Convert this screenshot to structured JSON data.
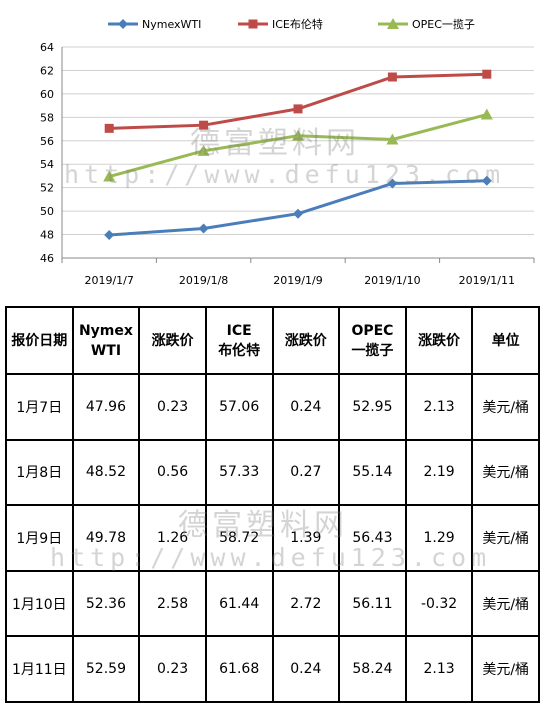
{
  "chart_data": {
    "type": "line",
    "categories": [
      "2019/1/7",
      "2019/1/8",
      "2019/1/9",
      "2019/1/10",
      "2019/1/11"
    ],
    "ylim": [
      46,
      64
    ],
    "yticks": [
      "46",
      "48",
      "50",
      "52",
      "54",
      "56",
      "58",
      "60",
      "62",
      "64"
    ],
    "grid": true,
    "legend": "top",
    "series": [
      {
        "name": "NymexWTI",
        "color": "#4a7ebb",
        "marker": "diamond",
        "values": [
          47.96,
          48.52,
          49.78,
          52.36,
          52.59
        ]
      },
      {
        "name": "ICE布伦特",
        "color": "#be4b48",
        "marker": "square",
        "values": [
          57.06,
          57.33,
          58.72,
          61.44,
          61.68
        ]
      },
      {
        "name": "OPEC一揽子",
        "color": "#98b954",
        "marker": "triangle",
        "values": [
          52.95,
          55.14,
          56.43,
          56.11,
          58.24
        ]
      }
    ]
  },
  "table": {
    "headers": [
      [
        "报价日期"
      ],
      [
        "Nymex",
        "WTI"
      ],
      [
        "涨跌价"
      ],
      [
        "ICE",
        "布伦特"
      ],
      [
        "涨跌价"
      ],
      [
        "OPEC",
        "一揽子"
      ],
      [
        "涨跌价"
      ],
      [
        "单位"
      ]
    ],
    "rows": [
      [
        "1月7日",
        "47.96",
        "0.23",
        "57.06",
        "0.24",
        "52.95",
        "2.13",
        "美元/桶"
      ],
      [
        "1月8日",
        "48.52",
        "0.56",
        "57.33",
        "0.27",
        "55.14",
        "2.19",
        "美元/桶"
      ],
      [
        "1月9日",
        "49.78",
        "1.26",
        "58.72",
        "1.39",
        "56.43",
        "1.29",
        "美元/桶"
      ],
      [
        "1月10日",
        "52.36",
        "2.58",
        "61.44",
        "2.72",
        "56.11",
        "-0.32",
        "美元/桶"
      ],
      [
        "1月11日",
        "52.59",
        "0.23",
        "61.68",
        "0.24",
        "58.24",
        "2.13",
        "美元/桶"
      ]
    ]
  },
  "watermark": {
    "name": "德富塑料网",
    "url": "http://www.defu123.com"
  }
}
